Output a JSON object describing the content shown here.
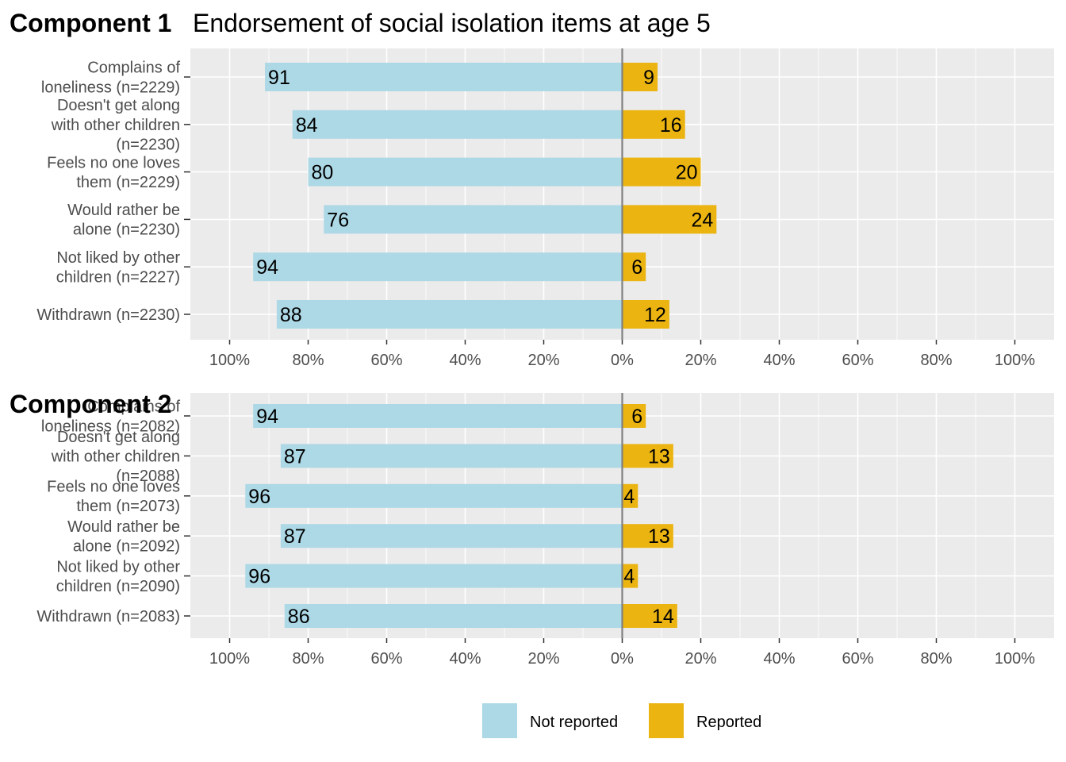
{
  "colors": {
    "not_reported": "#ADD8E6",
    "reported": "#EBB411",
    "panel_bg": "#EBEBEB",
    "grid": "#FFFFFF",
    "zero_line": "#808080",
    "axis_text": "#4D4D4D"
  },
  "title": "Endorsement of social isolation items at age 5",
  "x_tick_labels": [
    "100%",
    "80%",
    "60%",
    "40%",
    "20%",
    "0%",
    "20%",
    "40%",
    "60%",
    "80%",
    "100%"
  ],
  "legend": {
    "position": "bottom",
    "items": [
      {
        "label": "Not reported",
        "color": "#ADD8E6"
      },
      {
        "label": "Reported",
        "color": "#EBB411"
      }
    ]
  },
  "chart_data": [
    {
      "type": "bar",
      "orientation": "horizontal-diverging",
      "tag": "Component 1",
      "xlim": [
        -100,
        100
      ],
      "grid": true,
      "categories": [
        [
          "Complains of",
          "loneliness (n=2229)"
        ],
        [
          "Doesn't get along",
          "with other children",
          "(n=2230)"
        ],
        [
          "Feels no one loves",
          "them (n=2229)"
        ],
        [
          "Would rather be",
          "alone (n=2230)"
        ],
        [
          "Not liked by other",
          "children (n=2227)"
        ],
        [
          "Withdrawn (n=2230)"
        ]
      ],
      "series": [
        {
          "name": "Not reported",
          "values": [
            91,
            84,
            80,
            76,
            94,
            88
          ]
        },
        {
          "name": "Reported",
          "values": [
            9,
            16,
            20,
            24,
            6,
            12
          ]
        }
      ]
    },
    {
      "type": "bar",
      "orientation": "horizontal-diverging",
      "tag": "Component 2",
      "xlim": [
        -100,
        100
      ],
      "grid": true,
      "categories": [
        [
          "Complains of",
          "loneliness (n=2082)"
        ],
        [
          "Doesn't get along",
          "with other children",
          "(n=2088)"
        ],
        [
          "Feels no one loves",
          "them (n=2073)"
        ],
        [
          "Would rather be",
          "alone (n=2092)"
        ],
        [
          "Not liked by other",
          "children (n=2090)"
        ],
        [
          "Withdrawn (n=2083)"
        ]
      ],
      "series": [
        {
          "name": "Not reported",
          "values": [
            94,
            87,
            96,
            87,
            96,
            86
          ]
        },
        {
          "name": "Reported",
          "values": [
            6,
            13,
            4,
            13,
            4,
            14
          ]
        }
      ]
    }
  ]
}
